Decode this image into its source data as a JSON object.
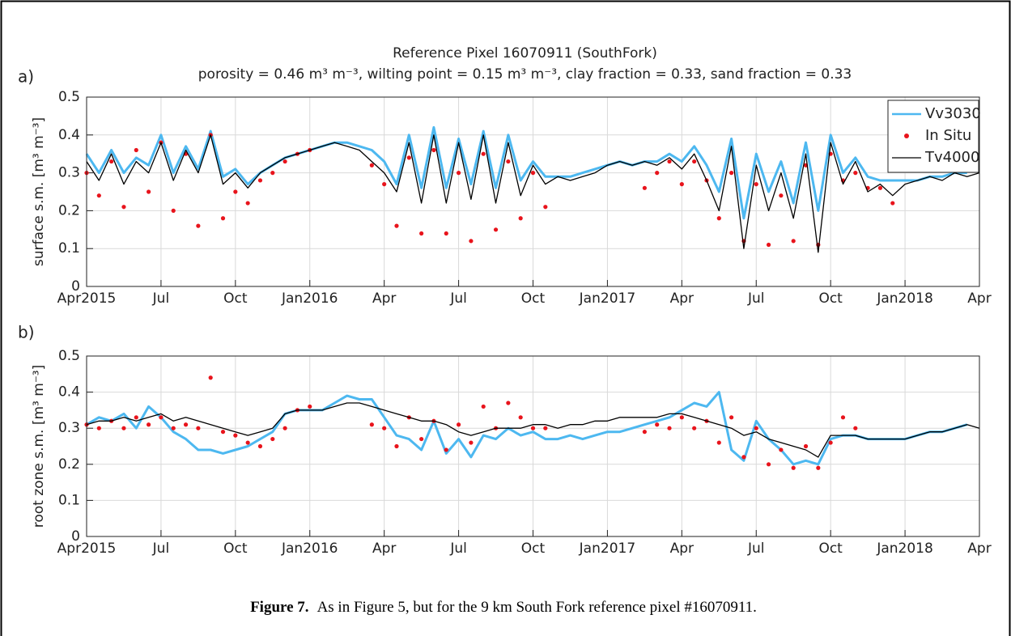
{
  "chart_data": [
    {
      "type": "line",
      "panel_label": "a)",
      "title": "Reference Pixel 16070911 (SouthFork)",
      "subtitle": "porosity = 0.46 m³ m⁻³, wilting point = 0.15 m³ m⁻³, clay fraction = 0.33, sand fraction = 0.33",
      "ylabel": "surface s.m. [m³ m⁻³]",
      "x": [
        0,
        0.5,
        1,
        1.5,
        2,
        2.5,
        3,
        3.5,
        4,
        4.5,
        5,
        5.5,
        6,
        6.5,
        7,
        7.5,
        8,
        8.5,
        9,
        9.5,
        10,
        10.5,
        11,
        11.5,
        12,
        12.5,
        13,
        13.5,
        14,
        14.5,
        15,
        15.5,
        16,
        16.5,
        17,
        17.5,
        18,
        18.5,
        19,
        19.5,
        20,
        20.5,
        21,
        21.5,
        22,
        22.5,
        23,
        23.5,
        24,
        24.5,
        25,
        25.5,
        26,
        26.5,
        27,
        27.5,
        28,
        28.5,
        29,
        29.5,
        30,
        30.5,
        31,
        31.5,
        32,
        32.5,
        33,
        33.5,
        34,
        34.5,
        35,
        35.5,
        36
      ],
      "xlim": [
        0,
        36
      ],
      "xticks": [
        {
          "value": 0,
          "label": "Apr2015"
        },
        {
          "value": 3,
          "label": "Jul"
        },
        {
          "value": 6,
          "label": "Oct"
        },
        {
          "value": 9,
          "label": "Jan2016"
        },
        {
          "value": 12,
          "label": "Apr"
        },
        {
          "value": 15,
          "label": "Jul"
        },
        {
          "value": 18,
          "label": "Oct"
        },
        {
          "value": 21,
          "label": "Jan2017"
        },
        {
          "value": 24,
          "label": "Apr"
        },
        {
          "value": 27,
          "label": "Jul"
        },
        {
          "value": 30,
          "label": "Oct"
        },
        {
          "value": 33,
          "label": "Jan2018"
        },
        {
          "value": 36,
          "label": "Apr"
        }
      ],
      "ylim": [
        0,
        0.5
      ],
      "yticks": [
        0,
        0.1,
        0.2,
        0.3,
        0.4,
        0.5
      ],
      "grid": true,
      "legend": "upper right",
      "series": [
        {
          "name": "Vv3030",
          "color": "#4db8f0",
          "mode": "line",
          "values": [
            0.35,
            0.3,
            0.36,
            0.3,
            0.34,
            0.32,
            0.4,
            0.3,
            0.37,
            0.31,
            0.41,
            0.29,
            0.31,
            0.27,
            0.3,
            0.32,
            0.34,
            0.35,
            0.36,
            0.37,
            0.38,
            0.38,
            0.37,
            0.36,
            0.33,
            0.27,
            0.4,
            0.26,
            0.42,
            0.26,
            0.39,
            0.27,
            0.41,
            0.26,
            0.4,
            0.28,
            0.33,
            0.29,
            0.29,
            0.29,
            0.3,
            0.31,
            0.32,
            0.33,
            0.32,
            0.33,
            0.33,
            0.35,
            0.33,
            0.37,
            0.32,
            0.25,
            0.39,
            0.18,
            0.35,
            0.25,
            0.33,
            0.22,
            0.38,
            0.2,
            0.4,
            0.3,
            0.34,
            0.29,
            0.28,
            0.28,
            0.28,
            0.28,
            0.29,
            0.29,
            0.3,
            0.3,
            null
          ]
        },
        {
          "name": "In Situ",
          "color": "#e8141c",
          "mode": "dots",
          "values": [
            0.3,
            0.24,
            0.33,
            0.21,
            0.36,
            0.25,
            0.38,
            0.2,
            0.35,
            0.16,
            0.4,
            0.18,
            0.25,
            0.22,
            0.28,
            0.3,
            0.33,
            0.35,
            0.36,
            null,
            null,
            null,
            null,
            0.32,
            0.27,
            0.16,
            0.34,
            0.14,
            0.36,
            0.14,
            0.3,
            0.12,
            0.35,
            0.15,
            0.33,
            0.18,
            0.3,
            0.21,
            null,
            null,
            null,
            null,
            null,
            null,
            null,
            0.26,
            0.3,
            0.33,
            0.27,
            0.33,
            0.28,
            0.18,
            0.3,
            0.12,
            0.27,
            0.11,
            0.24,
            0.12,
            0.32,
            0.11,
            0.35,
            0.28,
            0.3,
            0.26,
            0.26,
            0.22,
            null,
            null,
            null,
            null,
            null,
            null,
            null
          ]
        },
        {
          "name": "Tv4000",
          "color": "#000000",
          "mode": "line",
          "values": [
            0.33,
            0.28,
            0.35,
            0.27,
            0.33,
            0.3,
            0.38,
            0.28,
            0.36,
            0.3,
            0.4,
            0.27,
            0.3,
            0.26,
            0.3,
            0.32,
            0.34,
            0.35,
            0.36,
            0.37,
            0.38,
            0.37,
            0.36,
            0.33,
            0.3,
            0.25,
            0.38,
            0.22,
            0.4,
            0.22,
            0.38,
            0.23,
            0.4,
            0.22,
            0.38,
            0.24,
            0.32,
            0.27,
            0.29,
            0.28,
            0.29,
            0.3,
            0.32,
            0.33,
            0.32,
            0.33,
            0.32,
            0.34,
            0.31,
            0.35,
            0.28,
            0.2,
            0.37,
            0.1,
            0.32,
            0.2,
            0.3,
            0.18,
            0.35,
            0.09,
            0.38,
            0.27,
            0.33,
            0.25,
            0.27,
            0.24,
            0.27,
            0.28,
            0.29,
            0.28,
            0.3,
            0.29,
            0.3
          ]
        }
      ]
    },
    {
      "type": "line",
      "panel_label": "b)",
      "ylabel": "root zone s.m. [m³ m⁻³]",
      "x": [
        0,
        0.5,
        1,
        1.5,
        2,
        2.5,
        3,
        3.5,
        4,
        4.5,
        5,
        5.5,
        6,
        6.5,
        7,
        7.5,
        8,
        8.5,
        9,
        9.5,
        10,
        10.5,
        11,
        11.5,
        12,
        12.5,
        13,
        13.5,
        14,
        14.5,
        15,
        15.5,
        16,
        16.5,
        17,
        17.5,
        18,
        18.5,
        19,
        19.5,
        20,
        20.5,
        21,
        21.5,
        22,
        22.5,
        23,
        23.5,
        24,
        24.5,
        25,
        25.5,
        26,
        26.5,
        27,
        27.5,
        28,
        28.5,
        29,
        29.5,
        30,
        30.5,
        31,
        31.5,
        32,
        32.5,
        33,
        33.5,
        34,
        34.5,
        35,
        35.5,
        36
      ],
      "xlim": [
        0,
        36
      ],
      "xticks": [
        {
          "value": 0,
          "label": "Apr2015"
        },
        {
          "value": 3,
          "label": "Jul"
        },
        {
          "value": 6,
          "label": "Oct"
        },
        {
          "value": 9,
          "label": "Jan2016"
        },
        {
          "value": 12,
          "label": "Apr"
        },
        {
          "value": 15,
          "label": "Jul"
        },
        {
          "value": 18,
          "label": "Oct"
        },
        {
          "value": 21,
          "label": "Jan2017"
        },
        {
          "value": 24,
          "label": "Apr"
        },
        {
          "value": 27,
          "label": "Jul"
        },
        {
          "value": 30,
          "label": "Oct"
        },
        {
          "value": 33,
          "label": "Jan2018"
        },
        {
          "value": 36,
          "label": "Apr"
        }
      ],
      "ylim": [
        0,
        0.5
      ],
      "yticks": [
        0,
        0.1,
        0.2,
        0.3,
        0.4,
        0.5
      ],
      "grid": true,
      "series": [
        {
          "color": "#4db8f0",
          "mode": "line",
          "values": [
            0.31,
            0.33,
            0.32,
            0.34,
            0.3,
            0.36,
            0.33,
            0.29,
            0.27,
            0.24,
            0.24,
            0.23,
            0.24,
            0.25,
            0.27,
            0.29,
            0.34,
            0.35,
            0.35,
            0.35,
            0.37,
            0.39,
            0.38,
            0.38,
            0.33,
            0.28,
            0.27,
            0.24,
            0.32,
            0.23,
            0.27,
            0.22,
            0.28,
            0.27,
            0.3,
            0.28,
            0.29,
            0.27,
            0.27,
            0.28,
            0.27,
            0.28,
            0.29,
            0.29,
            0.3,
            0.31,
            0.32,
            0.33,
            0.35,
            0.37,
            0.36,
            0.4,
            0.24,
            0.21,
            0.32,
            0.27,
            0.24,
            0.2,
            0.21,
            0.2,
            0.27,
            0.28,
            0.28,
            0.27,
            0.27,
            0.27,
            0.27,
            0.28,
            0.29,
            0.29,
            0.3,
            0.31,
            null
          ]
        },
        {
          "color": "#e8141c",
          "mode": "dots",
          "values": [
            0.31,
            0.3,
            0.32,
            0.3,
            0.33,
            0.31,
            0.33,
            0.3,
            0.31,
            0.3,
            0.44,
            0.29,
            0.28,
            0.26,
            0.25,
            0.27,
            0.3,
            0.35,
            0.36,
            null,
            null,
            null,
            null,
            0.31,
            0.3,
            0.25,
            0.33,
            0.27,
            0.32,
            0.24,
            0.31,
            0.26,
            0.36,
            0.3,
            0.37,
            0.33,
            0.3,
            0.3,
            null,
            null,
            null,
            null,
            null,
            null,
            null,
            0.29,
            0.31,
            0.3,
            0.33,
            0.3,
            0.32,
            0.26,
            0.33,
            0.22,
            0.3,
            0.2,
            0.24,
            0.19,
            0.25,
            0.19,
            0.26,
            0.33,
            0.3,
            null,
            null,
            null,
            null,
            null,
            null,
            null,
            null,
            null,
            null
          ]
        },
        {
          "color": "#000000",
          "mode": "line",
          "values": [
            0.31,
            0.32,
            0.32,
            0.33,
            0.32,
            0.33,
            0.34,
            0.32,
            0.33,
            0.32,
            0.31,
            0.3,
            0.29,
            0.28,
            0.29,
            0.3,
            0.34,
            0.35,
            0.35,
            0.35,
            0.36,
            0.37,
            0.37,
            0.36,
            0.35,
            0.34,
            0.33,
            0.32,
            0.32,
            0.31,
            0.29,
            0.28,
            0.29,
            0.3,
            0.3,
            0.3,
            0.31,
            0.31,
            0.3,
            0.31,
            0.31,
            0.32,
            0.32,
            0.33,
            0.33,
            0.33,
            0.33,
            0.34,
            0.34,
            0.33,
            0.32,
            0.31,
            0.3,
            0.28,
            0.29,
            0.27,
            0.26,
            0.25,
            0.24,
            0.22,
            0.28,
            0.28,
            0.28,
            0.27,
            0.27,
            0.27,
            0.27,
            0.28,
            0.29,
            0.29,
            0.3,
            0.31,
            0.3
          ]
        }
      ]
    }
  ],
  "caption": {
    "label": "Figure 7.",
    "text": "As in Figure 5, but for the 9 km South Fork reference pixel #16070911."
  }
}
